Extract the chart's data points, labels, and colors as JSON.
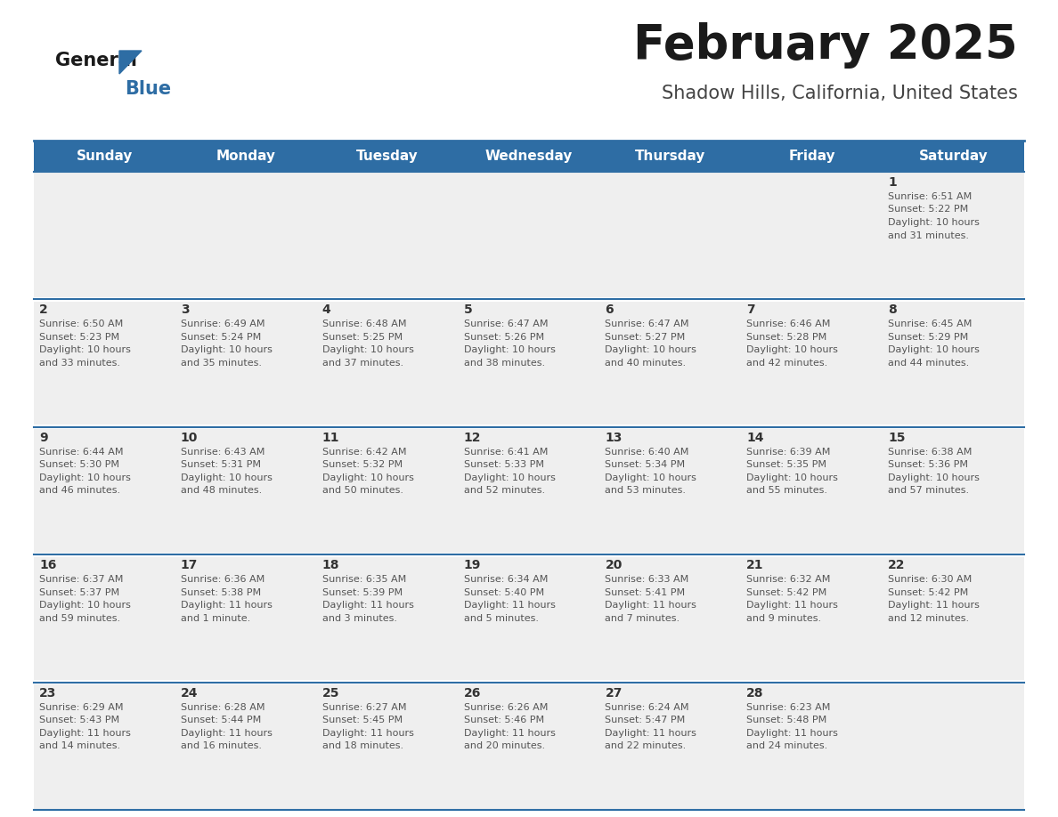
{
  "title": "February 2025",
  "subtitle": "Shadow Hills, California, United States",
  "header_bg_color": "#2E6DA4",
  "header_text_color": "#FFFFFF",
  "cell_bg_color": "#EFEFEF",
  "cell_text_color": "#333333",
  "border_color": "#2E6DA4",
  "day_headers": [
    "Sunday",
    "Monday",
    "Tuesday",
    "Wednesday",
    "Thursday",
    "Friday",
    "Saturday"
  ],
  "days": [
    {
      "day": 1,
      "col": 6,
      "row": 0,
      "sunrise": "6:51 AM",
      "sunset": "5:22 PM",
      "daylight_hours": 10,
      "daylight_minutes": 31
    },
    {
      "day": 2,
      "col": 0,
      "row": 1,
      "sunrise": "6:50 AM",
      "sunset": "5:23 PM",
      "daylight_hours": 10,
      "daylight_minutes": 33
    },
    {
      "day": 3,
      "col": 1,
      "row": 1,
      "sunrise": "6:49 AM",
      "sunset": "5:24 PM",
      "daylight_hours": 10,
      "daylight_minutes": 35
    },
    {
      "day": 4,
      "col": 2,
      "row": 1,
      "sunrise": "6:48 AM",
      "sunset": "5:25 PM",
      "daylight_hours": 10,
      "daylight_minutes": 37
    },
    {
      "day": 5,
      "col": 3,
      "row": 1,
      "sunrise": "6:47 AM",
      "sunset": "5:26 PM",
      "daylight_hours": 10,
      "daylight_minutes": 38
    },
    {
      "day": 6,
      "col": 4,
      "row": 1,
      "sunrise": "6:47 AM",
      "sunset": "5:27 PM",
      "daylight_hours": 10,
      "daylight_minutes": 40
    },
    {
      "day": 7,
      "col": 5,
      "row": 1,
      "sunrise": "6:46 AM",
      "sunset": "5:28 PM",
      "daylight_hours": 10,
      "daylight_minutes": 42
    },
    {
      "day": 8,
      "col": 6,
      "row": 1,
      "sunrise": "6:45 AM",
      "sunset": "5:29 PM",
      "daylight_hours": 10,
      "daylight_minutes": 44
    },
    {
      "day": 9,
      "col": 0,
      "row": 2,
      "sunrise": "6:44 AM",
      "sunset": "5:30 PM",
      "daylight_hours": 10,
      "daylight_minutes": 46
    },
    {
      "day": 10,
      "col": 1,
      "row": 2,
      "sunrise": "6:43 AM",
      "sunset": "5:31 PM",
      "daylight_hours": 10,
      "daylight_minutes": 48
    },
    {
      "day": 11,
      "col": 2,
      "row": 2,
      "sunrise": "6:42 AM",
      "sunset": "5:32 PM",
      "daylight_hours": 10,
      "daylight_minutes": 50
    },
    {
      "day": 12,
      "col": 3,
      "row": 2,
      "sunrise": "6:41 AM",
      "sunset": "5:33 PM",
      "daylight_hours": 10,
      "daylight_minutes": 52
    },
    {
      "day": 13,
      "col": 4,
      "row": 2,
      "sunrise": "6:40 AM",
      "sunset": "5:34 PM",
      "daylight_hours": 10,
      "daylight_minutes": 53
    },
    {
      "day": 14,
      "col": 5,
      "row": 2,
      "sunrise": "6:39 AM",
      "sunset": "5:35 PM",
      "daylight_hours": 10,
      "daylight_minutes": 55
    },
    {
      "day": 15,
      "col": 6,
      "row": 2,
      "sunrise": "6:38 AM",
      "sunset": "5:36 PM",
      "daylight_hours": 10,
      "daylight_minutes": 57
    },
    {
      "day": 16,
      "col": 0,
      "row": 3,
      "sunrise": "6:37 AM",
      "sunset": "5:37 PM",
      "daylight_hours": 10,
      "daylight_minutes": 59
    },
    {
      "day": 17,
      "col": 1,
      "row": 3,
      "sunrise": "6:36 AM",
      "sunset": "5:38 PM",
      "daylight_hours": 11,
      "daylight_minutes": 1
    },
    {
      "day": 18,
      "col": 2,
      "row": 3,
      "sunrise": "6:35 AM",
      "sunset": "5:39 PM",
      "daylight_hours": 11,
      "daylight_minutes": 3
    },
    {
      "day": 19,
      "col": 3,
      "row": 3,
      "sunrise": "6:34 AM",
      "sunset": "5:40 PM",
      "daylight_hours": 11,
      "daylight_minutes": 5
    },
    {
      "day": 20,
      "col": 4,
      "row": 3,
      "sunrise": "6:33 AM",
      "sunset": "5:41 PM",
      "daylight_hours": 11,
      "daylight_minutes": 7
    },
    {
      "day": 21,
      "col": 5,
      "row": 3,
      "sunrise": "6:32 AM",
      "sunset": "5:42 PM",
      "daylight_hours": 11,
      "daylight_minutes": 9
    },
    {
      "day": 22,
      "col": 6,
      "row": 3,
      "sunrise": "6:30 AM",
      "sunset": "5:42 PM",
      "daylight_hours": 11,
      "daylight_minutes": 12
    },
    {
      "day": 23,
      "col": 0,
      "row": 4,
      "sunrise": "6:29 AM",
      "sunset": "5:43 PM",
      "daylight_hours": 11,
      "daylight_minutes": 14
    },
    {
      "day": 24,
      "col": 1,
      "row": 4,
      "sunrise": "6:28 AM",
      "sunset": "5:44 PM",
      "daylight_hours": 11,
      "daylight_minutes": 16
    },
    {
      "day": 25,
      "col": 2,
      "row": 4,
      "sunrise": "6:27 AM",
      "sunset": "5:45 PM",
      "daylight_hours": 11,
      "daylight_minutes": 18
    },
    {
      "day": 26,
      "col": 3,
      "row": 4,
      "sunrise": "6:26 AM",
      "sunset": "5:46 PM",
      "daylight_hours": 11,
      "daylight_minutes": 20
    },
    {
      "day": 27,
      "col": 4,
      "row": 4,
      "sunrise": "6:24 AM",
      "sunset": "5:47 PM",
      "daylight_hours": 11,
      "daylight_minutes": 22
    },
    {
      "day": 28,
      "col": 5,
      "row": 4,
      "sunrise": "6:23 AM",
      "sunset": "5:48 PM",
      "daylight_hours": 11,
      "daylight_minutes": 24
    }
  ],
  "fig_width": 11.88,
  "fig_height": 9.18,
  "dpi": 100
}
